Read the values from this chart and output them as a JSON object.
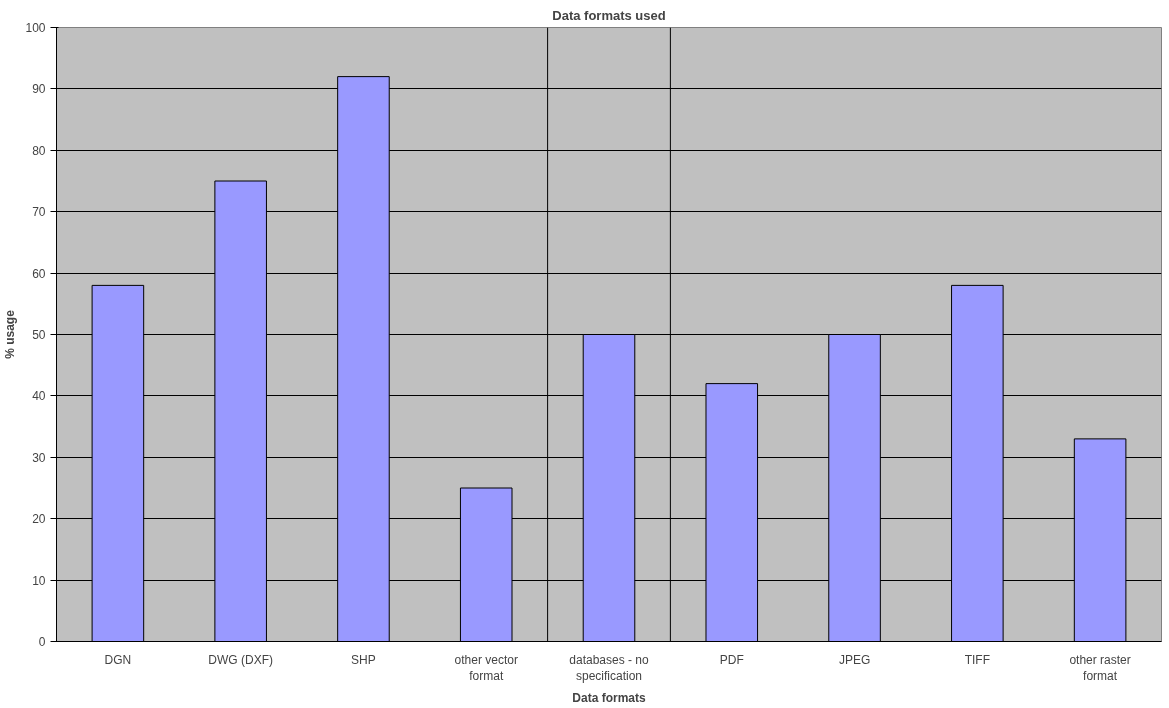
{
  "chart_data": {
    "type": "bar",
    "title": "Data formats used",
    "xlabel": "Data formats",
    "ylabel": "% usage",
    "categories": [
      "DGN",
      "DWG (DXF)",
      "SHP",
      "other vector\nformat",
      "databases - no\nspecification",
      "PDF",
      "JPEG",
      "TIFF",
      "other raster\nformat"
    ],
    "series": [
      {
        "color": "#9999ff",
        "values": [
          58,
          75,
          92,
          25,
          50,
          42,
          50,
          58,
          33
        ]
      }
    ],
    "ylim": [
      0,
      100
    ],
    "yticks": [
      0,
      10,
      20,
      30,
      40,
      50,
      60,
      70,
      80,
      90,
      100
    ],
    "grid": "y"
  }
}
